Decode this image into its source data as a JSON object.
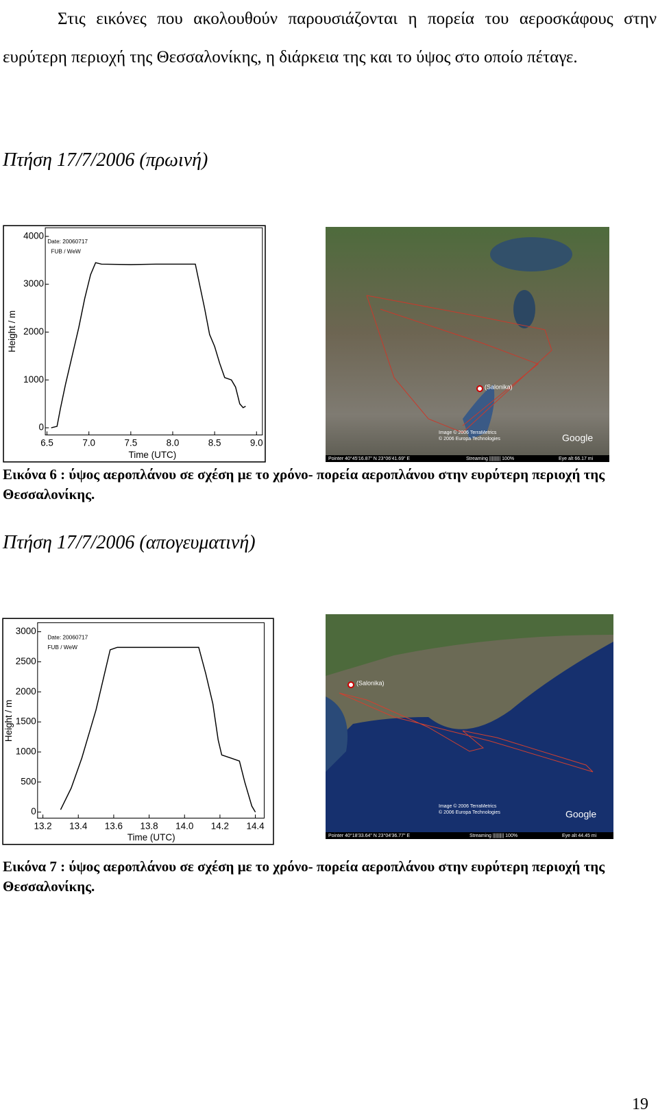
{
  "intro": "Στις εικόνες που ακολουθούν παρουσιάζονται η πορεία του αεροσκάφους στην ευρύτερη περιοχή της Θεσσαλονίκης, η διάρκεια της και το ύψος στο οποίο πέταγε.",
  "sections": [
    {
      "heading": "Πτήση 17/7/2006 (πρωινή)",
      "map": {
        "place_label": "(Salonika)",
        "credit_1": "Image © 2006 TerraMetrics",
        "credit_2": "© 2006 Europa Technologies",
        "pointer": "Pointer  40°45'16.87\" N   23°06'41.69\" E",
        "streaming": "Streaming ||||||||| 100%",
        "eye_alt": "Eye  alt  66.17 mi",
        "logo": "Google"
      },
      "caption": "Εικόνα 6 : ύψος αεροπλάνου σε σχέση με το χρόνο- πορεία αεροπλάνου στην ευρύτερη περιοχή της Θεσσαλονίκης."
    },
    {
      "heading": "Πτήση 17/7/2006 (απογευματινή)",
      "map": {
        "place_label": "(Salonika)",
        "credit_1": "Image © 2006 TerraMetrics",
        "credit_2": "© 2006 Europa Technologies",
        "pointer": "Pointer  40°18'33.64\" N   23°04'36.77\" E",
        "streaming": "Streaming ||||||||| 100%",
        "eye_alt": "Eye  alt  44.45 mi",
        "logo": "Google"
      },
      "caption": "Εικόνα 7 : ύψος αεροπλάνου σε σχέση με το χρόνο- πορεία αεροπλάνου στην ευρύτερη περιοχή της Θεσσαλονίκης."
    }
  ],
  "chart_data": [
    {
      "type": "line",
      "x_label": "Time (UTC)",
      "y_label": "Height / m",
      "annotations": [
        "Date: 20060717",
        "FUB / WeW"
      ],
      "color": "#000000",
      "x": [
        6.55,
        6.62,
        6.66,
        6.72,
        6.8,
        6.88,
        6.95,
        7.02,
        7.08,
        7.15,
        7.5,
        7.8,
        8.0,
        8.27,
        8.32,
        8.38,
        8.44,
        8.5,
        8.56,
        8.62,
        8.7,
        8.75,
        8.8,
        8.84,
        8.87
      ],
      "values": [
        0,
        30,
        400,
        900,
        1500,
        2100,
        2700,
        3200,
        3450,
        3420,
        3410,
        3420,
        3420,
        3420,
        3000,
        2500,
        1950,
        1700,
        1350,
        1050,
        1000,
        850,
        500,
        420,
        450
      ],
      "xlim": [
        6.48,
        9.07
      ],
      "ylim": [
        -150,
        4180
      ],
      "xticks": [
        6.5,
        {
          "value": 7,
          "label": "7.0"
        },
        7.5,
        {
          "value": 8,
          "label": "8.0"
        },
        8.5,
        {
          "value": 9,
          "label": "9.0"
        }
      ],
      "yticks": [
        0,
        1000,
        2000,
        3000,
        4000
      ]
    },
    {
      "type": "line",
      "x_label": "Time (UTC)",
      "y_label": "Height / m",
      "annotations": [
        "Date: 20060717",
        "FUB / WeW"
      ],
      "color": "#000000",
      "x": [
        13.3,
        13.36,
        13.42,
        13.47,
        13.5,
        13.54,
        13.58,
        13.62,
        13.8,
        14.0,
        14.08,
        14.12,
        14.16,
        14.19,
        14.21,
        14.26,
        14.31,
        14.34,
        14.38,
        14.4
      ],
      "values": [
        40,
        400,
        900,
        1400,
        1700,
        2200,
        2700,
        2740,
        2740,
        2740,
        2740,
        2300,
        1800,
        1200,
        950,
        900,
        850,
        500,
        100,
        0
      ],
      "xlim": [
        13.17,
        14.45
      ],
      "ylim": [
        -100,
        3150
      ],
      "xticks": [
        13.2,
        13.4,
        13.6,
        13.8,
        {
          "value": 14,
          "label": "14.0"
        },
        14.2,
        14.4
      ],
      "yticks": [
        0,
        500,
        1000,
        1500,
        2000,
        2500,
        3000
      ]
    }
  ],
  "page_number": "19"
}
